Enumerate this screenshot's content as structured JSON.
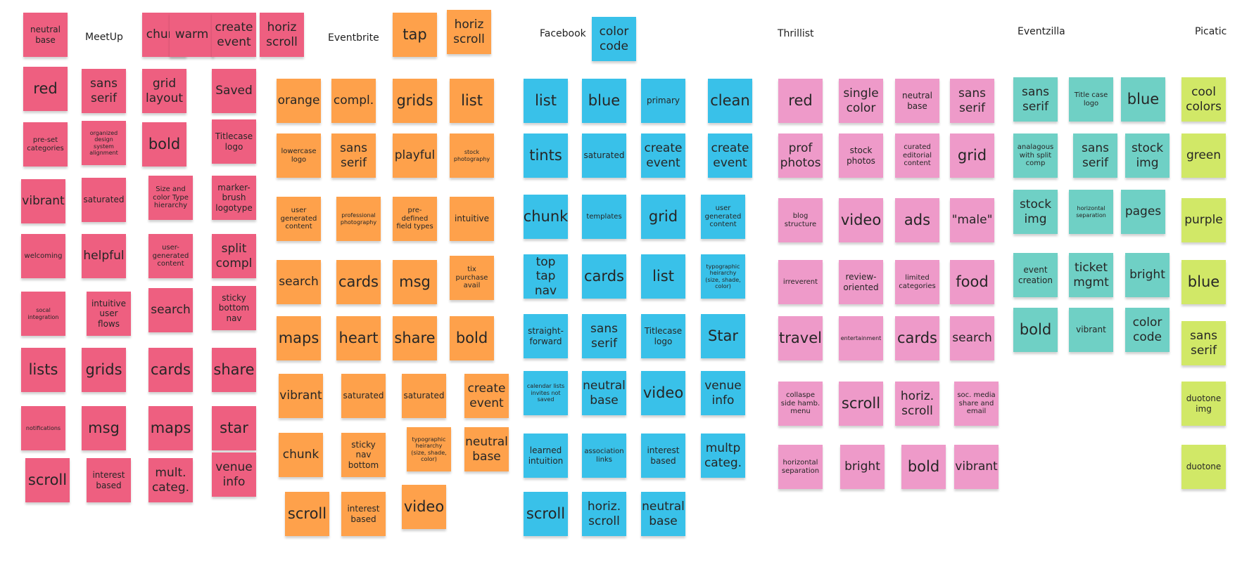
{
  "colors": {
    "meetup": "#EE5F80",
    "eventbrite": "#FEA14B",
    "facebook": "#39C1E9",
    "thrillist": "#EE9AC9",
    "eventzilla": "#6FD0C5",
    "picatic": "#D1E867"
  },
  "headers": {
    "meetup": "MeetUp",
    "eventbrite": "Eventbrite",
    "facebook": "Facebook",
    "thrillist": "Thrillist",
    "eventzilla": "Eventzilla",
    "picatic": "Picatic"
  },
  "notes": [
    {
      "id": "m1",
      "text": "neutral base"
    },
    {
      "id": "m2",
      "text": "chunk"
    },
    {
      "id": "m3",
      "text": "warm"
    },
    {
      "id": "m4",
      "text": "create event"
    },
    {
      "id": "m5",
      "text": "horiz scroll"
    },
    {
      "id": "m6",
      "text": "red"
    },
    {
      "id": "m7",
      "text": "sans serif"
    },
    {
      "id": "m8",
      "text": "grid layout"
    },
    {
      "id": "m9",
      "text": "Saved"
    },
    {
      "id": "m10",
      "text": "pre-set categories"
    },
    {
      "id": "m11",
      "text": "organized design system alignment"
    },
    {
      "id": "m12",
      "text": "bold"
    },
    {
      "id": "m13",
      "text": "Titlecase logo"
    },
    {
      "id": "m14",
      "text": "vibrant"
    },
    {
      "id": "m15",
      "text": "saturated"
    },
    {
      "id": "m16",
      "text": "Size and color Type hierarchy"
    },
    {
      "id": "m17",
      "text": "marker-brush logotype"
    },
    {
      "id": "m18",
      "text": "welcoming"
    },
    {
      "id": "m19",
      "text": "helpful"
    },
    {
      "id": "m20",
      "text": "user-generated content"
    },
    {
      "id": "m21",
      "text": "split compl"
    },
    {
      "id": "m22",
      "text": "socal integration"
    },
    {
      "id": "m23",
      "text": "intuitive user flows"
    },
    {
      "id": "m24",
      "text": "search"
    },
    {
      "id": "m25",
      "text": "sticky bottom nav"
    },
    {
      "id": "m26",
      "text": "lists"
    },
    {
      "id": "m27",
      "text": "grids"
    },
    {
      "id": "m28",
      "text": "cards"
    },
    {
      "id": "m29",
      "text": "share"
    },
    {
      "id": "m30",
      "text": "notifications"
    },
    {
      "id": "m31",
      "text": "msg"
    },
    {
      "id": "m32",
      "text": "maps"
    },
    {
      "id": "m33",
      "text": "star"
    },
    {
      "id": "m34",
      "text": "scroll"
    },
    {
      "id": "m35",
      "text": "interest based"
    },
    {
      "id": "m36",
      "text": "mult. categ."
    },
    {
      "id": "m37",
      "text": "venue info"
    },
    {
      "id": "e1",
      "text": "tap"
    },
    {
      "id": "e2",
      "text": "horiz scroll"
    },
    {
      "id": "e3",
      "text": "orange"
    },
    {
      "id": "e4",
      "text": "compl."
    },
    {
      "id": "e5",
      "text": "grids"
    },
    {
      "id": "e6",
      "text": "list"
    },
    {
      "id": "e7",
      "text": "lowercase logo"
    },
    {
      "id": "e8",
      "text": "sans serif"
    },
    {
      "id": "e9",
      "text": "playful"
    },
    {
      "id": "e10",
      "text": "stock photography"
    },
    {
      "id": "e11",
      "text": "user generated content"
    },
    {
      "id": "e12",
      "text": "professional photography"
    },
    {
      "id": "e13",
      "text": "pre-defined field types"
    },
    {
      "id": "e14",
      "text": "intuitive"
    },
    {
      "id": "e15",
      "text": "search"
    },
    {
      "id": "e16",
      "text": "cards"
    },
    {
      "id": "e17",
      "text": "msg"
    },
    {
      "id": "e18",
      "text": "tix purchase avail"
    },
    {
      "id": "e19",
      "text": "maps"
    },
    {
      "id": "e20",
      "text": "heart"
    },
    {
      "id": "e21",
      "text": "share"
    },
    {
      "id": "e22",
      "text": "bold"
    },
    {
      "id": "e23",
      "text": "vibrant"
    },
    {
      "id": "e24",
      "text": "saturated"
    },
    {
      "id": "e25",
      "text": "saturated"
    },
    {
      "id": "e26",
      "text": "create event"
    },
    {
      "id": "e27",
      "text": "chunk"
    },
    {
      "id": "e28",
      "text": "sticky nav bottom"
    },
    {
      "id": "e29",
      "text": "typographic heirarchy (size, shade, color)"
    },
    {
      "id": "e30",
      "text": "neutral base"
    },
    {
      "id": "e31",
      "text": "scroll"
    },
    {
      "id": "e32",
      "text": "interest based"
    },
    {
      "id": "e33",
      "text": "video"
    },
    {
      "id": "f0",
      "text": "color code"
    },
    {
      "id": "f1",
      "text": "list"
    },
    {
      "id": "f2",
      "text": "blue"
    },
    {
      "id": "f3",
      "text": "primary"
    },
    {
      "id": "f4",
      "text": "clean"
    },
    {
      "id": "f5",
      "text": "tints"
    },
    {
      "id": "f6",
      "text": "saturated"
    },
    {
      "id": "f7",
      "text": "create event"
    },
    {
      "id": "f8",
      "text": "create event"
    },
    {
      "id": "f9",
      "text": "chunk"
    },
    {
      "id": "f10",
      "text": "templates"
    },
    {
      "id": "f11",
      "text": "grid"
    },
    {
      "id": "f12",
      "text": "user generated content"
    },
    {
      "id": "f13",
      "text": "top tap nav"
    },
    {
      "id": "f14",
      "text": "cards"
    },
    {
      "id": "f15",
      "text": "list"
    },
    {
      "id": "f16",
      "text": "typographic heirarchy (size, shade, color)"
    },
    {
      "id": "f17",
      "text": "straight-forward"
    },
    {
      "id": "f18",
      "text": "sans serif"
    },
    {
      "id": "f19",
      "text": "Titlecase logo"
    },
    {
      "id": "f20",
      "text": "Star"
    },
    {
      "id": "f21",
      "text": "calendar lists invites not saved"
    },
    {
      "id": "f22",
      "text": "neutral base"
    },
    {
      "id": "f23",
      "text": "video"
    },
    {
      "id": "f24",
      "text": "venue info"
    },
    {
      "id": "f25",
      "text": "learned intuition"
    },
    {
      "id": "f26",
      "text": "association links"
    },
    {
      "id": "f27",
      "text": "interest based"
    },
    {
      "id": "f28",
      "text": "multp categ."
    },
    {
      "id": "f29",
      "text": "scroll"
    },
    {
      "id": "f30",
      "text": "horiz. scroll"
    },
    {
      "id": "f31",
      "text": "neutral base"
    },
    {
      "id": "t1",
      "text": "red"
    },
    {
      "id": "t2",
      "text": "single color"
    },
    {
      "id": "t3",
      "text": "neutral base"
    },
    {
      "id": "t4",
      "text": "sans serif"
    },
    {
      "id": "t5",
      "text": "prof photos"
    },
    {
      "id": "t6",
      "text": "stock photos"
    },
    {
      "id": "t7",
      "text": "curated editorial content"
    },
    {
      "id": "t8",
      "text": "grid"
    },
    {
      "id": "t9",
      "text": "blog structure"
    },
    {
      "id": "t10",
      "text": "video"
    },
    {
      "id": "t11",
      "text": "ads"
    },
    {
      "id": "t12",
      "text": "\"male\""
    },
    {
      "id": "t13",
      "text": "irreverent"
    },
    {
      "id": "t14",
      "text": "review-oriented"
    },
    {
      "id": "t15",
      "text": "limited categories"
    },
    {
      "id": "t16",
      "text": "food"
    },
    {
      "id": "t17",
      "text": "travel"
    },
    {
      "id": "t18",
      "text": "entertainment"
    },
    {
      "id": "t19",
      "text": "cards"
    },
    {
      "id": "t20",
      "text": "search"
    },
    {
      "id": "t21",
      "text": "collaspe side hamb. menu"
    },
    {
      "id": "t22",
      "text": "scroll"
    },
    {
      "id": "t23",
      "text": "horiz. scroll"
    },
    {
      "id": "t24",
      "text": "soc. media share and email"
    },
    {
      "id": "t25",
      "text": "horizontal separation"
    },
    {
      "id": "t26",
      "text": "bright"
    },
    {
      "id": "t27",
      "text": "bold"
    },
    {
      "id": "t28",
      "text": "vibrant"
    },
    {
      "id": "z1",
      "text": "sans serif"
    },
    {
      "id": "z2",
      "text": "Title case logo"
    },
    {
      "id": "z3",
      "text": "blue"
    },
    {
      "id": "z4",
      "text": "analagous with split comp"
    },
    {
      "id": "z5",
      "text": "sans serif"
    },
    {
      "id": "z6",
      "text": "stock img"
    },
    {
      "id": "z7",
      "text": "stock img"
    },
    {
      "id": "z8",
      "text": "horizontal separation"
    },
    {
      "id": "z9",
      "text": "pages"
    },
    {
      "id": "z10",
      "text": "event creation"
    },
    {
      "id": "z11",
      "text": "ticket mgmt"
    },
    {
      "id": "z12",
      "text": "bright"
    },
    {
      "id": "z13",
      "text": "bold"
    },
    {
      "id": "z14",
      "text": "vibrant"
    },
    {
      "id": "z15",
      "text": "color code"
    },
    {
      "id": "p1",
      "text": "cool colors"
    },
    {
      "id": "p2",
      "text": "green"
    },
    {
      "id": "p3",
      "text": "purple"
    },
    {
      "id": "p4",
      "text": "blue"
    },
    {
      "id": "p5",
      "text": "sans serif"
    },
    {
      "id": "p6",
      "text": "duotone img"
    },
    {
      "id": "p7",
      "text": "duotone"
    }
  ]
}
